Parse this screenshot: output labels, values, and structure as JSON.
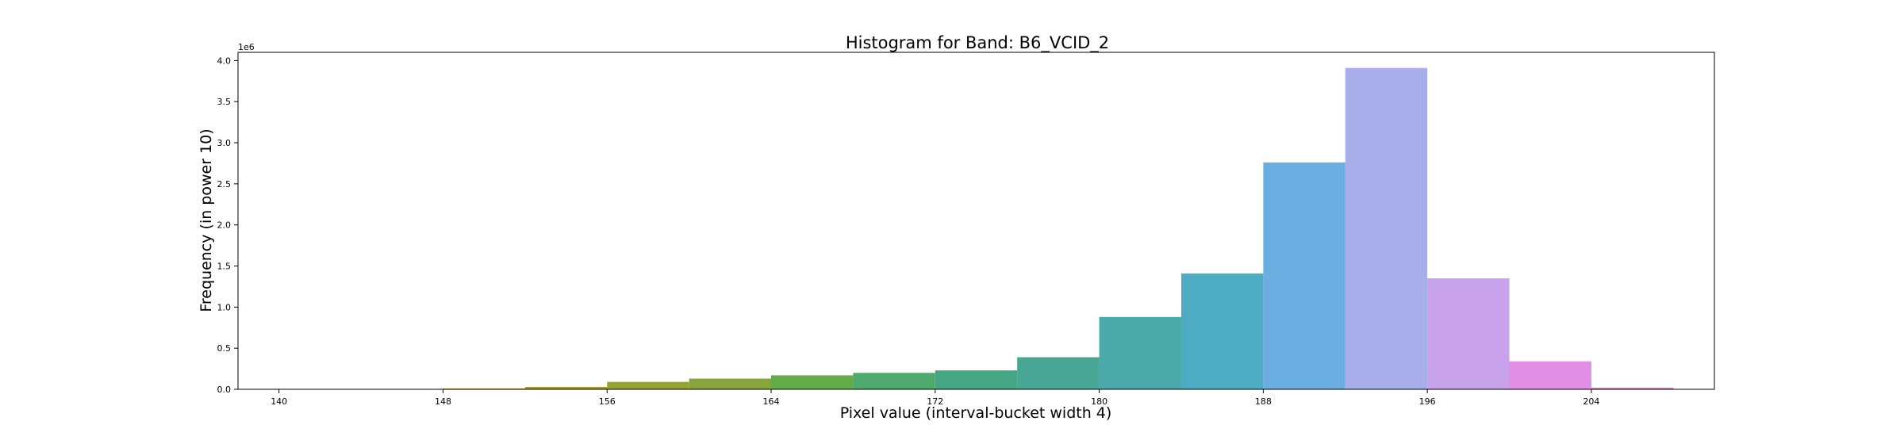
{
  "chart_data": {
    "type": "bar",
    "title": "Histogram for Band: B6_VCID_2",
    "xlabel": "Pixel value (interval-bucket width 4)",
    "ylabel": "Frequency (in power 10)",
    "y_offset_label": "1e6",
    "bin_width": 4,
    "xlim": [
      138,
      210
    ],
    "ylim": [
      0,
      4.1
    ],
    "xticks": [
      140,
      148,
      156,
      164,
      172,
      180,
      188,
      196,
      204
    ],
    "yticks": [
      0.0,
      0.5,
      1.0,
      1.5,
      2.0,
      2.5,
      3.0,
      3.5,
      4.0
    ],
    "ytick_labels": [
      "0.0",
      "0.5",
      "1.0",
      "1.5",
      "2.0",
      "2.5",
      "3.0",
      "3.5",
      "4.0"
    ],
    "grid": false,
    "bins": [
      {
        "x": 140,
        "value": 0.0,
        "color": "#f77189"
      },
      {
        "x": 144,
        "value": 0.001,
        "color": "#e18632"
      },
      {
        "x": 148,
        "value": 0.01,
        "color": "#c39532"
      },
      {
        "x": 152,
        "value": 0.03,
        "color": "#a99c31"
      },
      {
        "x": 156,
        "value": 0.09,
        "color": "#97a431"
      },
      {
        "x": 160,
        "value": 0.13,
        "color": "#88a53c"
      },
      {
        "x": 164,
        "value": 0.17,
        "color": "#64ac4a"
      },
      {
        "x": 168,
        "value": 0.2,
        "color": "#4ea96c"
      },
      {
        "x": 172,
        "value": 0.23,
        "color": "#44a683"
      },
      {
        "x": 176,
        "value": 0.39,
        "color": "#48a794"
      },
      {
        "x": 180,
        "value": 0.88,
        "color": "#4aaaaa"
      },
      {
        "x": 184,
        "value": 1.41,
        "color": "#4eacc2"
      },
      {
        "x": 188,
        "value": 2.76,
        "color": "#6aaee2"
      },
      {
        "x": 192,
        "value": 3.91,
        "color": "#a8aee9"
      },
      {
        "x": 196,
        "value": 1.35,
        "color": "#c8a2ea"
      },
      {
        "x": 200,
        "value": 0.34,
        "color": "#e08ee6"
      },
      {
        "x": 204,
        "value": 0.02,
        "color": "#f27ac9"
      }
    ]
  }
}
